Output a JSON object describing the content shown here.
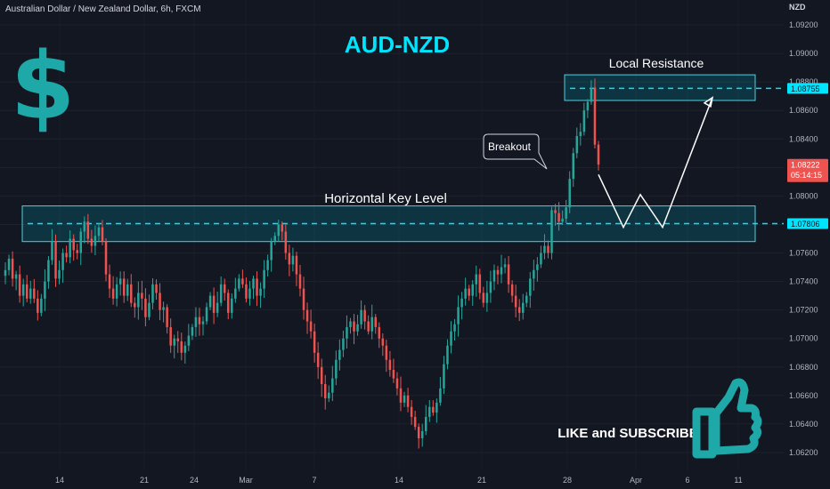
{
  "header": {
    "symbol": "Australian Dollar / New Zealand Dollar, 6h, FXCM",
    "currency": "NZD"
  },
  "title": "AUD-NZD",
  "logo_glyph": "$",
  "annotations": {
    "local_resistance": "Local Resistance",
    "horizontal_key_level": "Horizontal Key Level",
    "breakout": "Breakout",
    "cta": "LIKE and SUBSCRIBE"
  },
  "price_tags": {
    "resistance": "1.08755",
    "current_price": "1.08222",
    "countdown": "05:14:15",
    "key_level": "1.07806"
  },
  "colors": {
    "bullish": "#26a69a",
    "bearish": "#ef5350",
    "accent_cyan": "#00e5ff",
    "zone_border": "#4dd0e1",
    "logo": "#1fa8a8"
  },
  "chart_data": {
    "type": "candlestick",
    "ylim": [
      1.0615,
      1.0925
    ],
    "y_ticks": [
      "1.09200",
      "1.09000",
      "1.08800",
      "1.08600",
      "1.08400",
      "1.08200",
      "1.08000",
      "1.07800",
      "1.07600",
      "1.07400",
      "1.07200",
      "1.07000",
      "1.06800",
      "1.06600",
      "1.06400",
      "1.06200"
    ],
    "x_ticks": [
      "14",
      "21",
      "24",
      "Mar",
      "7",
      "14",
      "21",
      "28",
      "Apr",
      "6",
      "11"
    ],
    "zones": [
      {
        "name": "Horizontal Key Level",
        "low": 1.0768,
        "high": 1.0793,
        "line": 1.07806
      },
      {
        "name": "Local Resistance",
        "low": 1.0867,
        "high": 1.0885,
        "line": 1.08755
      }
    ],
    "projection": [
      1.0815,
      1.0778,
      1.0801,
      1.0778,
      1.0869
    ],
    "closes": [
      1.0748,
      1.0756,
      1.0742,
      1.0745,
      1.073,
      1.0738,
      1.0728,
      1.0735,
      1.0728,
      1.0718,
      1.0728,
      1.074,
      1.0755,
      1.0768,
      1.0742,
      1.0748,
      1.076,
      1.0757,
      1.077,
      1.0762,
      1.076,
      1.0775,
      1.0782,
      1.077,
      1.0765,
      1.0772,
      1.0778,
      1.0768,
      1.0745,
      1.0735,
      1.0728,
      1.0738,
      1.0742,
      1.073,
      1.0738,
      1.0725,
      1.0722,
      1.0732,
      1.0728,
      1.0715,
      1.0725,
      1.0738,
      1.0732,
      1.072,
      1.0722,
      1.0708,
      1.0695,
      1.07,
      1.0698,
      1.069,
      1.0695,
      1.0702,
      1.0708,
      1.0715,
      1.071,
      1.0712,
      1.0722,
      1.073,
      1.0718,
      1.0725,
      1.0738,
      1.0732,
      1.0718,
      1.0728,
      1.0735,
      1.0742,
      1.0738,
      1.0728,
      1.0735,
      1.0742,
      1.073,
      1.0735,
      1.0748,
      1.0755,
      1.0768,
      1.0772,
      1.078,
      1.0775,
      1.076,
      1.0752,
      1.0758,
      1.0745,
      1.0735,
      1.072,
      1.0712,
      1.0705,
      1.069,
      1.068,
      1.0668,
      1.0658,
      1.0662,
      1.0672,
      1.0685,
      1.0692,
      1.07,
      1.0708,
      1.0712,
      1.0705,
      1.071,
      1.072,
      1.0712,
      1.0705,
      1.0715,
      1.0708,
      1.07,
      1.0695,
      1.0685,
      1.0678,
      1.0672,
      1.0665,
      1.0655,
      1.066,
      1.0652,
      1.0645,
      1.0638,
      1.063,
      1.0635,
      1.0645,
      1.0652,
      1.0648,
      1.0655,
      1.0665,
      1.0682,
      1.0695,
      1.0705,
      1.071,
      1.0722,
      1.0728,
      1.0735,
      1.073,
      1.0738,
      1.0745,
      1.0732,
      1.0725,
      1.0732,
      1.074,
      1.0748,
      1.0745,
      1.075,
      1.0752,
      1.0738,
      1.073,
      1.0722,
      1.0718,
      1.0725,
      1.073,
      1.0742,
      1.0748,
      1.0752,
      1.076,
      1.0765,
      1.076,
      1.079,
      1.0788,
      1.0782,
      1.0784,
      1.0792,
      1.0812,
      1.083,
      1.0842,
      1.0845,
      1.086,
      1.0866,
      1.0876,
      1.0836,
      1.0822
    ]
  }
}
